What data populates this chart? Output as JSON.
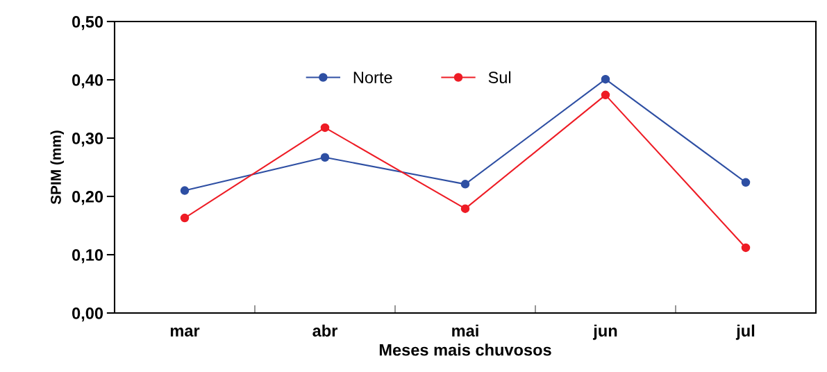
{
  "chart_data": {
    "type": "line",
    "xlabel": "Meses mais chuvosos",
    "ylabel": "SPIM (mm)",
    "categories": [
      "mar",
      "abr",
      "mai",
      "jun",
      "jul"
    ],
    "series": [
      {
        "name": "Norte",
        "color": "#2e4fa3",
        "values": [
          0.21,
          0.267,
          0.221,
          0.401,
          0.224
        ]
      },
      {
        "name": "Sul",
        "color": "#ee1c25",
        "values": [
          0.163,
          0.318,
          0.179,
          0.374,
          0.112
        ]
      }
    ],
    "ylim": [
      0,
      0.5
    ],
    "yticks": [
      {
        "value": 0,
        "label": "0,00"
      },
      {
        "value": 0.1,
        "label": "0,10"
      },
      {
        "value": 0.2,
        "label": "0,20"
      },
      {
        "value": 0.3,
        "label": "0,30"
      },
      {
        "value": 0.4,
        "label": "0,40"
      },
      {
        "value": 0.5,
        "label": "0,50"
      }
    ],
    "marker": "circle",
    "line_style": "solid",
    "grid": false,
    "legend": "top"
  }
}
